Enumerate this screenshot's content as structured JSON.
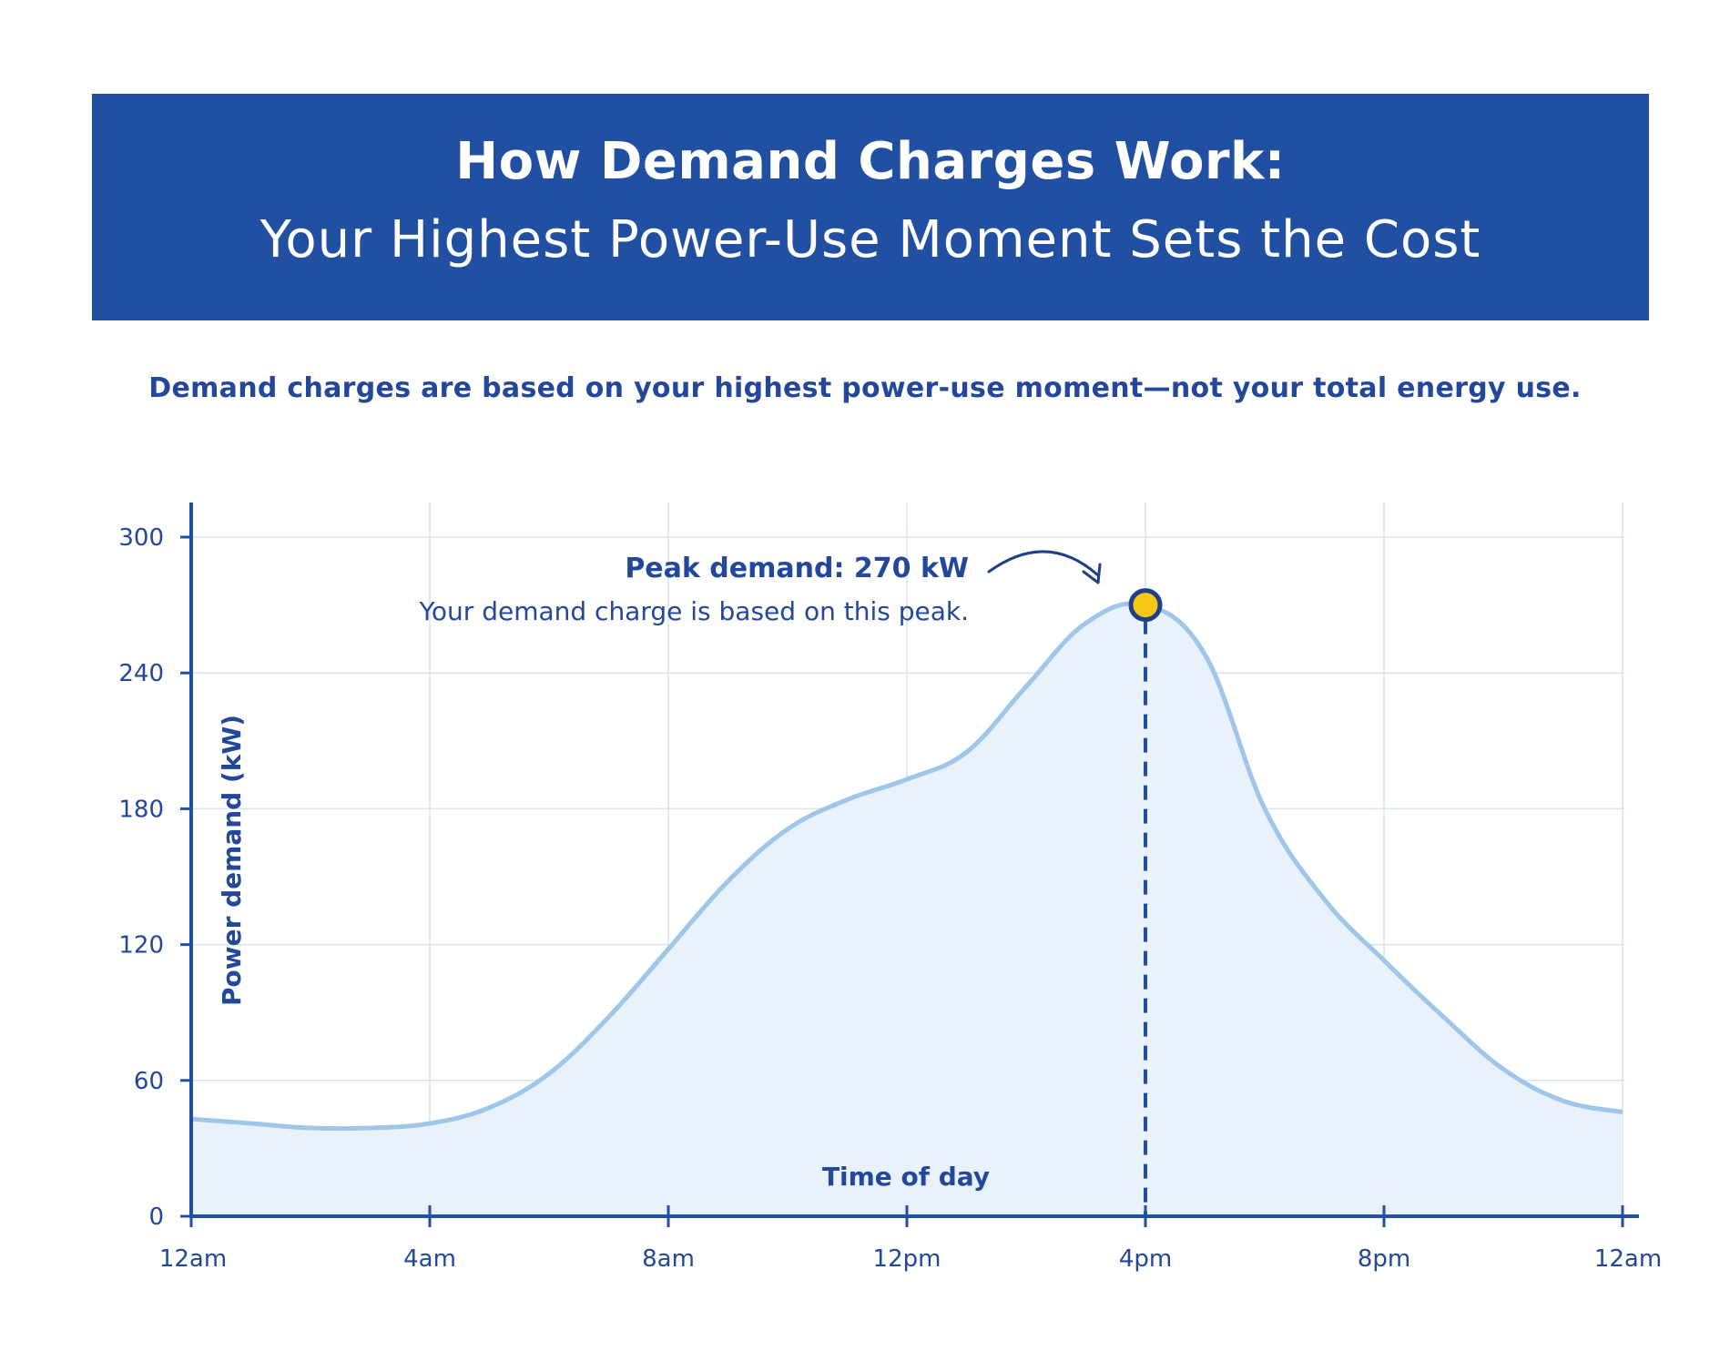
{
  "header": {
    "title": "How Demand Charges Work:",
    "subtitle": "Your Highest Power-Use Moment Sets the Cost"
  },
  "intro": "Demand charges are based on your highest power-use moment—not your total energy use.",
  "colors": {
    "banner": "#2150a3",
    "text": "#23479a",
    "axis": "#2150a3",
    "line": "#9ec5ea",
    "fill": "#e9f2fb",
    "grid": "#d7e2f2",
    "peak_marker": "#f4c815"
  },
  "chart_data": {
    "type": "area",
    "xlabel": "Time of day",
    "ylabel": "Power demand (kW)",
    "x_ticks": [
      "12am",
      "4am",
      "8am",
      "12pm",
      "4pm",
      "8pm",
      "12am"
    ],
    "x_tick_hours": [
      0,
      4,
      8,
      12,
      16,
      20,
      24
    ],
    "y_ticks": [
      0,
      60,
      120,
      180,
      240,
      300
    ],
    "xlim": [
      0,
      24
    ],
    "ylim": [
      0,
      300
    ],
    "grid": true,
    "series": [
      {
        "x": [
          0,
          1,
          2,
          3,
          4,
          5,
          6,
          7,
          8,
          9,
          10,
          11,
          12,
          13,
          14,
          15,
          16,
          17,
          18,
          19,
          20,
          21,
          22,
          23,
          24
        ],
        "y": [
          43,
          41,
          39,
          39,
          41,
          48,
          63,
          88,
          118,
          148,
          171,
          184,
          193,
          205,
          234,
          262,
          270,
          248,
          180,
          140,
          113,
          88,
          65,
          51,
          46
        ]
      }
    ],
    "peak": {
      "x": 16,
      "y": 270,
      "label": "Peak demand: 270 kW",
      "note": "Your demand charge is based on this peak."
    }
  }
}
